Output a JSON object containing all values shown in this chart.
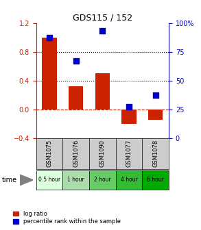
{
  "title": "GDS115 / 152",
  "samples": [
    "GSM1075",
    "GSM1076",
    "GSM1090",
    "GSM1077",
    "GSM1078"
  ],
  "time_labels": [
    "0.5 hour",
    "1 hour",
    "2 hour",
    "4 hour",
    "6 hour"
  ],
  "time_colors": [
    "#ddffdd",
    "#aaddaa",
    "#66cc66",
    "#33bb33",
    "#00aa00"
  ],
  "log_ratio": [
    1.0,
    0.32,
    0.5,
    -0.2,
    -0.15
  ],
  "percentile": [
    87,
    67,
    93,
    27,
    37
  ],
  "bar_color": "#cc2200",
  "dot_color": "#0000cc",
  "ylim_left": [
    -0.4,
    1.2
  ],
  "ylim_right": [
    0,
    100
  ],
  "yticks_left": [
    -0.4,
    0,
    0.4,
    0.8,
    1.2
  ],
  "yticks_right": [
    0,
    25,
    50,
    75,
    100
  ],
  "hlines": [
    0.4,
    0.8
  ],
  "background_color": "#ffffff"
}
